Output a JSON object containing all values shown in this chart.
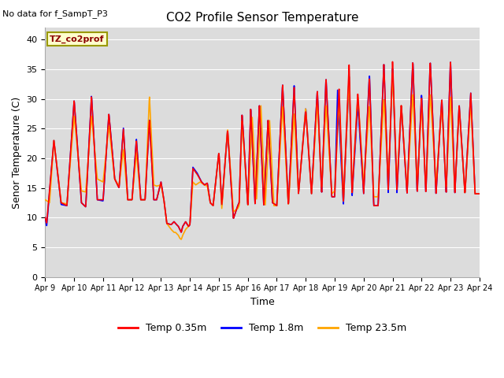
{
  "title": "CO2 Profile Sensor Temperature",
  "subtitle": "No data for f_SampT_P3",
  "xlabel": "Time",
  "ylabel": "Senor Temperature (C)",
  "legend_label_box": "TZ_co2prof",
  "legend_entries": [
    "Temp 0.35m",
    "Temp 1.8m",
    "Temp 23.5m"
  ],
  "legend_colors": [
    "#FF0000",
    "#0000FF",
    "#FFA500"
  ],
  "ylim": [
    0,
    42
  ],
  "yticks": [
    0,
    5,
    10,
    15,
    20,
    25,
    30,
    35,
    40
  ],
  "xlim": [
    0,
    15
  ],
  "xtick_labels": [
    "Apr 9",
    "Apr 10",
    "Apr 11",
    "Apr 12",
    "Apr 13",
    "Apr 14",
    "Apr 15",
    "Apr 16",
    "Apr 17",
    "Apr 18",
    "Apr 19",
    "Apr 20",
    "Apr 21",
    "Apr 22",
    "Apr 23",
    "Apr 24"
  ],
  "bg_color": "#DCDCDC",
  "line_width": 1.2,
  "box_facecolor": "#FFFFCC",
  "box_edgecolor": "#999900",
  "fig_width": 6.4,
  "fig_height": 4.8,
  "dpi": 100
}
